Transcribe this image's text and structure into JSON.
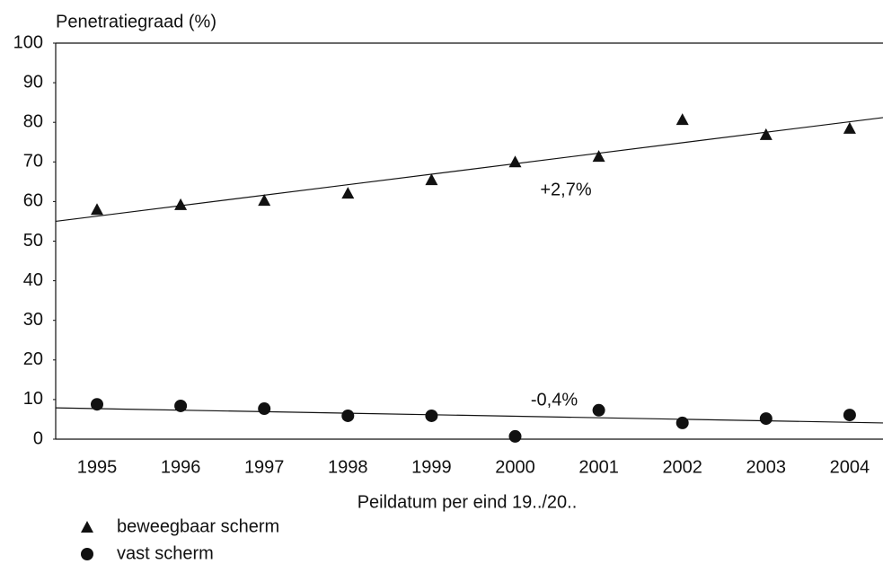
{
  "chart_data": {
    "type": "scatter",
    "y_label": "Penetratiegraad (%)",
    "x_label": "Peildatum per eind 19../20..",
    "categories": [
      "1995",
      "1996",
      "1997",
      "1998",
      "1999",
      "2000",
      "2001",
      "2002",
      "2003",
      "2004"
    ],
    "series": [
      {
        "name": "beweegbaar scherm",
        "marker": "triangle",
        "color": "#111111",
        "values": [
          58,
          59.2,
          60.3,
          62.1,
          65.5,
          70,
          71.4,
          80.7,
          76.9,
          78.5
        ],
        "trend": [
          55,
          81.2
        ],
        "trend_label": "+2,7%"
      },
      {
        "name": "vast scherm",
        "marker": "circle",
        "color": "#111111",
        "values": [
          8.8,
          8.4,
          7.7,
          5.9,
          5.9,
          0.7,
          7.3,
          4.1,
          5.2,
          6.1
        ],
        "trend": [
          7.9,
          4.1
        ],
        "trend_label": "-0,4%"
      }
    ],
    "ylim": [
      0,
      100
    ],
    "yticks": [
      0,
      10,
      20,
      30,
      40,
      50,
      60,
      70,
      80,
      90,
      100
    ]
  }
}
